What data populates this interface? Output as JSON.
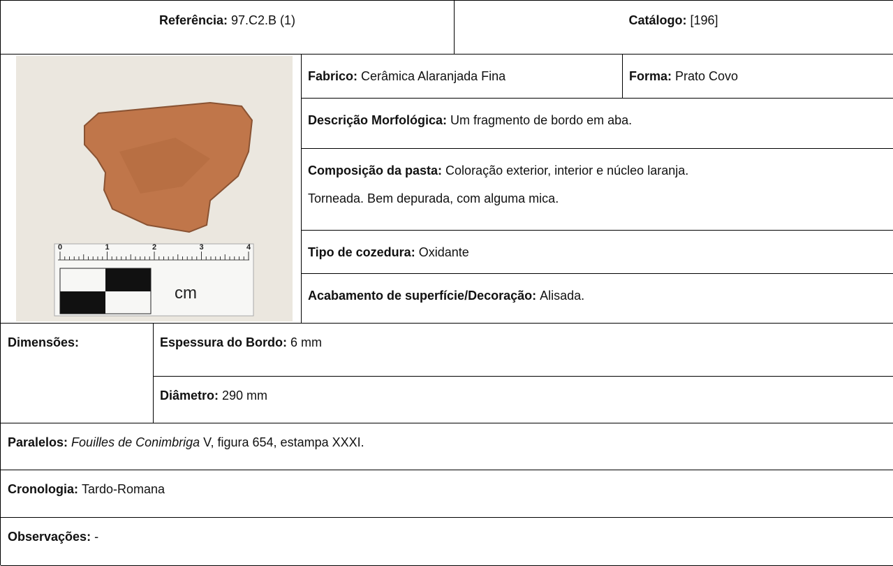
{
  "header": {
    "reference": {
      "label": "Referência:",
      "value": "97.C2.B (1)"
    },
    "catalog": {
      "label": "Catálogo:",
      "value": "[196]"
    }
  },
  "photo": {
    "scale_labels": [
      "0",
      "1",
      "2",
      "3",
      "4"
    ],
    "scale_unit": "cm"
  },
  "fields": {
    "fabrico": {
      "label": "Fabrico:",
      "value": "Cerâmica Alaranjada Fina"
    },
    "forma": {
      "label": "Forma:",
      "value": "Prato Covo"
    },
    "descricao": {
      "label": "Descrição Morfológica:",
      "value": "Um fragmento de bordo em aba."
    },
    "composicao": {
      "label": "Composição da pasta:",
      "lines": [
        "Coloração exterior, interior e núcleo laranja.",
        "Torneada. Bem depurada, com alguma mica."
      ]
    },
    "cozedura": {
      "label": "Tipo de cozedura:",
      "value": "Oxidante"
    },
    "acabamento": {
      "label": "Acabamento de superfície/Decoração:",
      "value": "Alisada."
    }
  },
  "dimensions": {
    "label": "Dimensões:",
    "espessura": {
      "label": "Espessura do Bordo:",
      "value": "6 mm"
    },
    "diametro": {
      "label": "Diâmetro:",
      "value": "290 mm"
    }
  },
  "paralelos": {
    "label": "Paralelos:",
    "title": "Fouilles de Conimbriga",
    "value": "V, figura 654, estampa XXXI."
  },
  "cronologia": {
    "label": "Cronologia:",
    "value": "Tardo-Romana"
  },
  "observacoes": {
    "label": "Observações:",
    "value": "-"
  }
}
